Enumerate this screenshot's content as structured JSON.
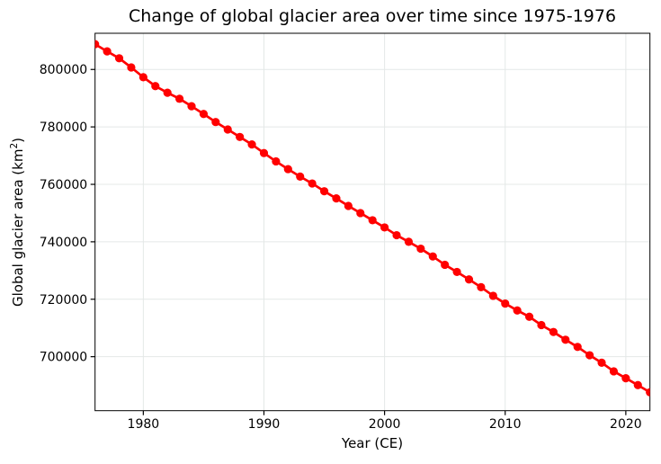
{
  "figure": {
    "background": "#ffffff"
  },
  "chart_data": {
    "type": "line",
    "title": "Change of global glacier area over time since 1975-1976",
    "xlabel": "Year (CE)",
    "ylabel": "Global glacier area (km²)",
    "ylabel_parts": {
      "prefix": "Global glacier area (km",
      "superscript": "2",
      "suffix": ")"
    },
    "xlim": [
      1976,
      2022
    ],
    "ylim": [
      681200,
      812600
    ],
    "xticks": [
      1980,
      1990,
      2000,
      2010,
      2020
    ],
    "yticks": [
      700000,
      720000,
      740000,
      760000,
      780000,
      800000
    ],
    "grid": true,
    "legend": "none",
    "line_color": "#ff0000",
    "marker": "circle",
    "grid_color": "#e4e8e7",
    "axis_color": "#000000",
    "series": [
      {
        "name": "Global glacier area",
        "color": "#ff0000",
        "x": [
          1976,
          1977,
          1978,
          1979,
          1980,
          1981,
          1982,
          1983,
          1984,
          1985,
          1986,
          1987,
          1988,
          1989,
          1990,
          1991,
          1992,
          1993,
          1994,
          1995,
          1996,
          1997,
          1998,
          1999,
          2000,
          2001,
          2002,
          2003,
          2004,
          2005,
          2006,
          2007,
          2008,
          2009,
          2010,
          2011,
          2012,
          2013,
          2014,
          2015,
          2016,
          2017,
          2018,
          2019,
          2020,
          2021,
          2022
        ],
        "values": [
          808800,
          806300,
          803900,
          800700,
          797300,
          794200,
          791900,
          789800,
          787200,
          784500,
          781700,
          779100,
          776500,
          773900,
          770900,
          768000,
          765300,
          762700,
          760300,
          757600,
          755100,
          752500,
          750000,
          747500,
          745000,
          742300,
          740000,
          737600,
          734900,
          732000,
          729500,
          726900,
          724200,
          721200,
          718500,
          716100,
          713900,
          711000,
          708600,
          705900,
          703400,
          700500,
          697900,
          694900,
          692500,
          690100,
          687600
        ]
      }
    ]
  }
}
